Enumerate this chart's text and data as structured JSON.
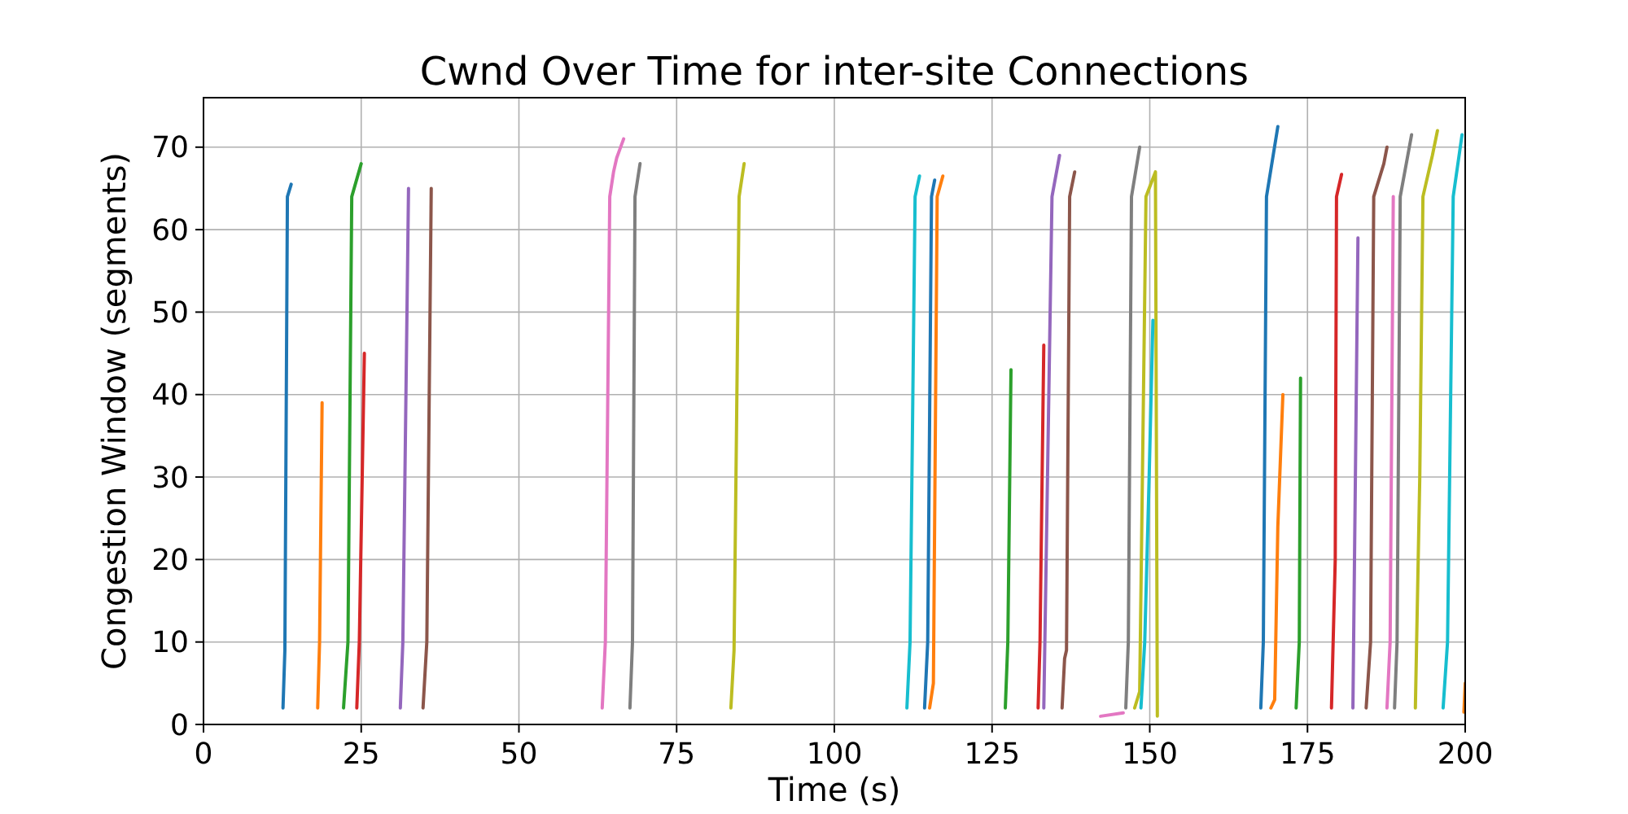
{
  "chart_data": {
    "type": "line",
    "title": "Cwnd Over Time for inter-site Connections",
    "xlabel": "Time (s)",
    "ylabel": "Congestion Window (segments)",
    "xlim": [
      0,
      200
    ],
    "xticks": [
      0,
      25,
      50,
      75,
      100,
      125,
      150,
      175,
      200
    ],
    "ylim": [
      0,
      76
    ],
    "yticks": [
      0,
      10,
      20,
      30,
      40,
      50,
      60,
      70
    ],
    "grid": true,
    "marker": "none",
    "line_style": "solid",
    "series": [
      {
        "color": "#1f77b4",
        "x": [
          12.6,
          12.9,
          13.3,
          13.9
        ],
        "values": [
          2,
          9,
          64,
          65.5
        ]
      },
      {
        "color": "#ff7f0e",
        "x": [
          18.1,
          18.4,
          18.8
        ],
        "values": [
          2,
          10,
          39
        ]
      },
      {
        "color": "#2ca02c",
        "x": [
          22.2,
          22.9,
          23.5,
          25.0
        ],
        "values": [
          2,
          10,
          64,
          68
        ]
      },
      {
        "color": "#d62728",
        "x": [
          24.3,
          24.7,
          25.5
        ],
        "values": [
          2,
          10,
          45
        ]
      },
      {
        "color": "#9467bd",
        "x": [
          31.2,
          31.6,
          32.5
        ],
        "values": [
          2,
          10,
          65
        ]
      },
      {
        "color": "#8c564b",
        "x": [
          34.8,
          35.4,
          36.1
        ],
        "values": [
          2,
          10,
          65
        ]
      },
      {
        "color": "#e377c2",
        "x": [
          63.2,
          63.7,
          64.4,
          65.0,
          65.5,
          66.6
        ],
        "values": [
          2,
          10,
          64,
          67,
          68.7,
          71
        ]
      },
      {
        "color": "#7f7f7f",
        "x": [
          67.6,
          68.0,
          68.4,
          69.2
        ],
        "values": [
          2,
          10,
          64,
          68
        ]
      },
      {
        "color": "#bcbd22",
        "x": [
          83.6,
          84.1,
          84.9,
          85.7
        ],
        "values": [
          2,
          9,
          64,
          68
        ]
      },
      {
        "color": "#17becf",
        "x": [
          111.5,
          112.0,
          112.8,
          113.5
        ],
        "values": [
          2,
          10,
          64,
          66.5
        ]
      },
      {
        "color": "#1f77b4",
        "x": [
          114.3,
          114.8,
          115.4,
          115.9
        ],
        "values": [
          2,
          10,
          64,
          66
        ]
      },
      {
        "color": "#ff7f0e",
        "x": [
          115.1,
          115.7,
          116.3,
          117.2
        ],
        "values": [
          2,
          5,
          64,
          66.5
        ]
      },
      {
        "color": "#2ca02c",
        "x": [
          127.1,
          127.5,
          128.0
        ],
        "values": [
          2,
          10,
          43
        ]
      },
      {
        "color": "#d62728",
        "x": [
          132.3,
          132.6,
          133.2
        ],
        "values": [
          2,
          10,
          46
        ]
      },
      {
        "color": "#9467bd",
        "x": [
          133.2,
          134.5,
          135.7
        ],
        "values": [
          2,
          64,
          69
        ]
      },
      {
        "color": "#8c564b",
        "x": [
          136.1,
          136.5,
          136.8,
          137.3,
          138.1
        ],
        "values": [
          2,
          8,
          9,
          64,
          67
        ]
      },
      {
        "color": "#e377c2",
        "x": [
          142.2,
          145.8
        ],
        "values": [
          1,
          1.4
        ]
      },
      {
        "color": "#7f7f7f",
        "x": [
          146.2,
          146.6,
          147.1,
          148.4
        ],
        "values": [
          2,
          10,
          64,
          70
        ]
      },
      {
        "color": "#bcbd22",
        "x": [
          147.6,
          148.4,
          149.4,
          150.9,
          151.2
        ],
        "values": [
          2,
          4,
          64,
          67,
          1
        ]
      },
      {
        "color": "#17becf",
        "x": [
          148.6,
          149.2,
          149.9,
          150.5
        ],
        "values": [
          2,
          10,
          30,
          49
        ]
      },
      {
        "color": "#1f77b4",
        "x": [
          167.6,
          168.0,
          168.5,
          170.3
        ],
        "values": [
          2,
          10,
          64,
          72.5
        ]
      },
      {
        "color": "#ff7f0e",
        "x": [
          169.2,
          169.8,
          170.3,
          171.1
        ],
        "values": [
          2,
          3,
          24,
          40
        ]
      },
      {
        "color": "#2ca02c",
        "x": [
          173.2,
          173.7,
          173.9
        ],
        "values": [
          2,
          10,
          42
        ]
      },
      {
        "color": "#d62728",
        "x": [
          178.8,
          179.4,
          179.6,
          180.4
        ],
        "values": [
          2,
          20,
          64,
          66.7
        ]
      },
      {
        "color": "#9467bd",
        "x": [
          182.2,
          183.0
        ],
        "values": [
          2,
          59
        ]
      },
      {
        "color": "#8c564b",
        "x": [
          184.3,
          185.0,
          185.5,
          187.1,
          187.6
        ],
        "values": [
          2,
          10,
          64,
          68,
          70
        ]
      },
      {
        "color": "#e377c2",
        "x": [
          187.6,
          188.1,
          188.6
        ],
        "values": [
          2,
          10,
          64
        ]
      },
      {
        "color": "#7f7f7f",
        "x": [
          188.8,
          189.2,
          189.7,
          191.5
        ],
        "values": [
          2,
          10,
          64,
          71.5
        ]
      },
      {
        "color": "#bcbd22",
        "x": [
          192.1,
          192.8,
          193.3,
          194.8,
          195.6
        ],
        "values": [
          2,
          30,
          64,
          69,
          72
        ]
      },
      {
        "color": "#17becf",
        "x": [
          196.5,
          197.2,
          198.1,
          199.5
        ],
        "values": [
          2,
          10,
          64,
          71.5
        ]
      },
      {
        "color": "#ff7f0e",
        "x": [
          199.8,
          200
        ],
        "values": [
          1.5,
          5
        ]
      }
    ]
  }
}
